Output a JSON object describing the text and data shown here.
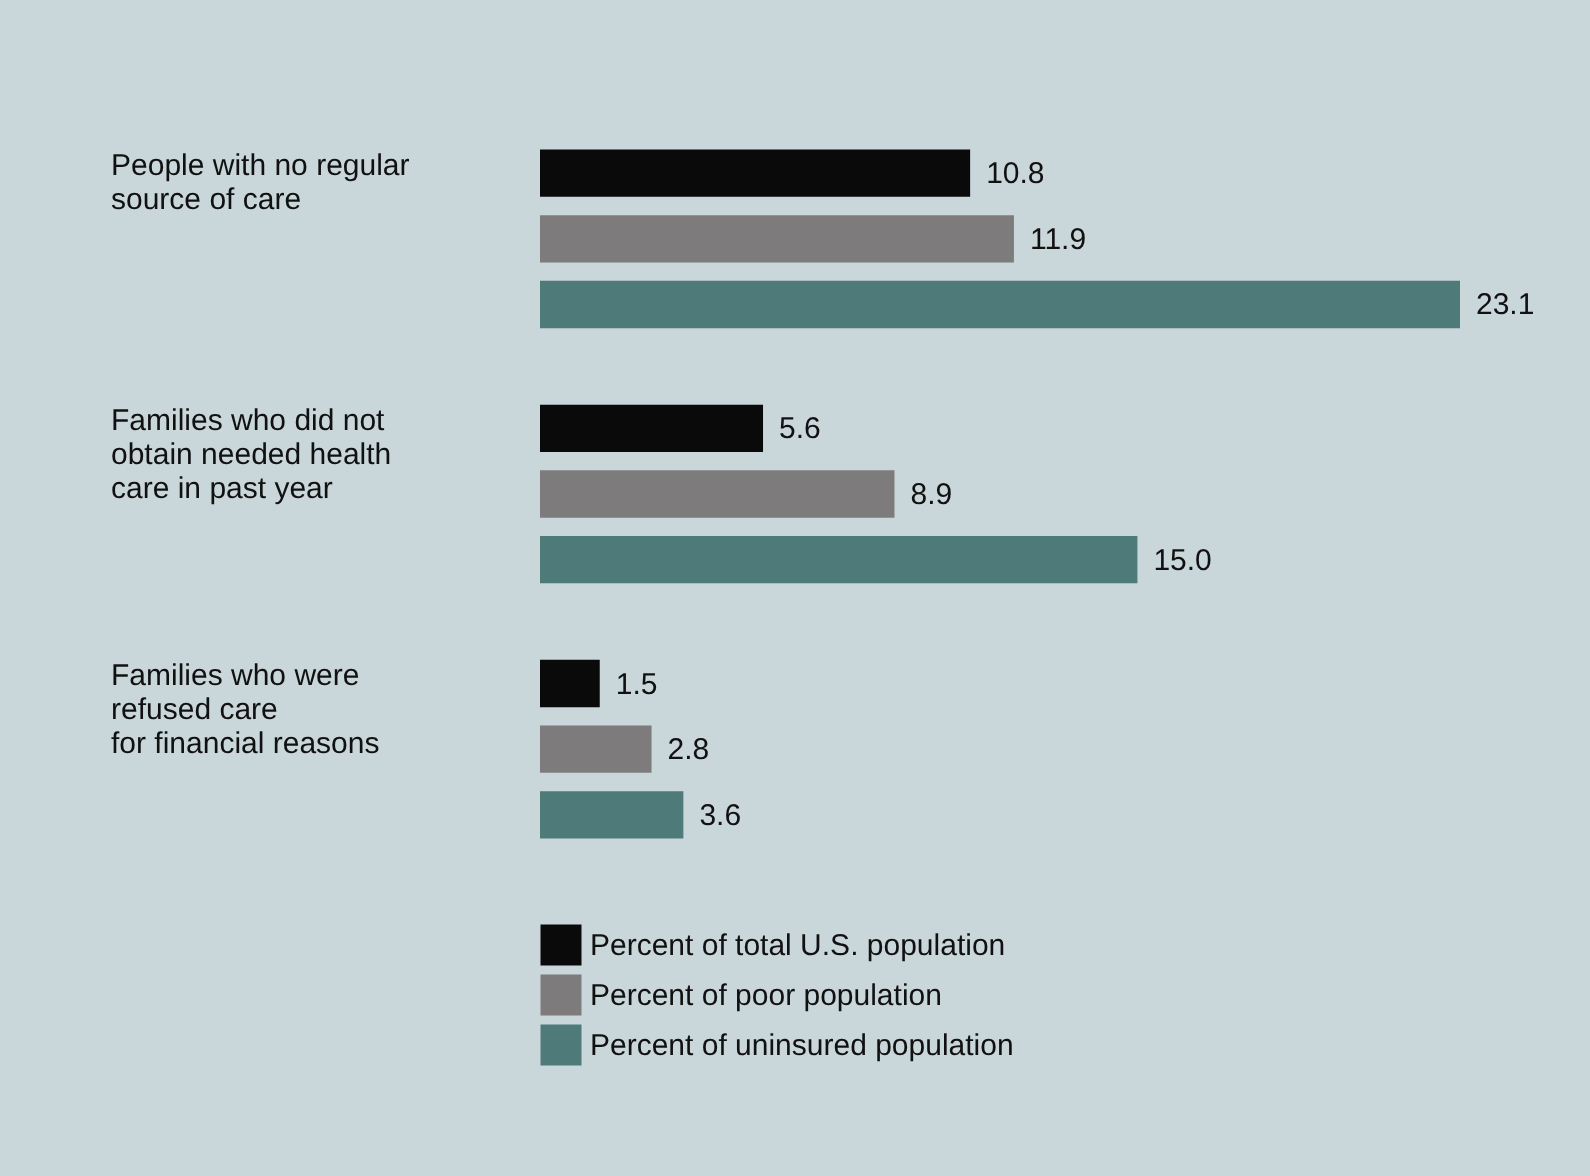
{
  "chart_data": {
    "type": "bar",
    "orientation": "horizontal",
    "legend": "bottom",
    "categories": [
      "People with no regular\nsource of care",
      "Families who did not\nobtain needed health\ncare in past year",
      "Families who were\nrefused care\nfor financial reasons"
    ],
    "series": [
      {
        "name": "Percent of total U.S. population",
        "color": "#0a0a0a",
        "values": [
          10.8,
          5.6,
          1.5
        ],
        "value_labels": [
          "10.8",
          "5.6",
          "1.5"
        ]
      },
      {
        "name": "Percent of poor population",
        "color": "#7d7b7b",
        "values": [
          11.9,
          8.9,
          2.8
        ],
        "value_labels": [
          "11.9",
          "8.9",
          "2.8"
        ]
      },
      {
        "name": "Percent of uninsured population",
        "color": "#4f7a7a",
        "values": [
          23.1,
          15.0,
          3.6
        ],
        "value_labels": [
          "23.1",
          "15.0",
          "3.6"
        ]
      }
    ]
  }
}
